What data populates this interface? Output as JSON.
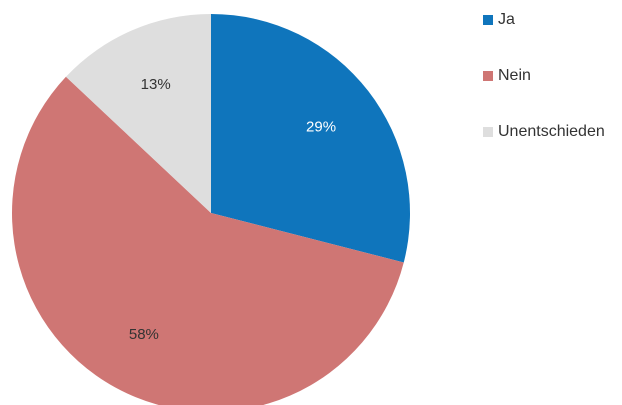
{
  "chart_data": {
    "type": "pie",
    "title": "",
    "legend_position": "right",
    "slices": [
      {
        "label": "Ja",
        "value": 29,
        "display": "29%",
        "color": "#0f75bc",
        "label_color": "#ffffff"
      },
      {
        "label": "Nein",
        "value": 58,
        "display": "58%",
        "color": "#cf7674",
        "label_color": "#333333"
      },
      {
        "label": "Unentschieden",
        "value": 13,
        "display": "13%",
        "color": "#dedede",
        "label_color": "#333333"
      }
    ]
  }
}
